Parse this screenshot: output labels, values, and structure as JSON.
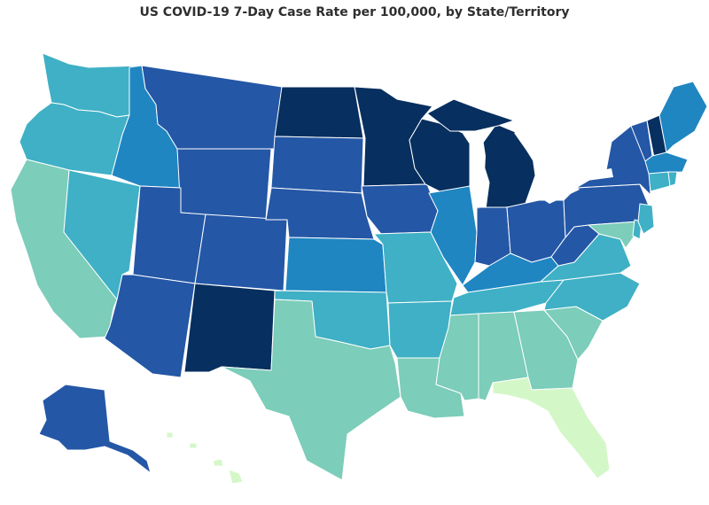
{
  "title": "US COVID-19 7-Day Case Rate per 100,000, by State/Territory",
  "colors": {
    "darkest": "#072f5f",
    "dark": "#2457a6",
    "mid_blue": "#1f86c2",
    "teal": "#3fb0c5",
    "aqua": "#57c0c0",
    "green_teal": "#7ccdb9",
    "light_green": "#d4f7c8"
  },
  "chart_data": {
    "type": "choropleth",
    "title": "US COVID-19 7-Day Case Rate per 100,000, by State/Territory",
    "color_classes": {
      "darkest": [
        "ND",
        "MN",
        "WI",
        "MI",
        "NM",
        "NH"
      ],
      "dark": [
        "MT",
        "WY",
        "SD",
        "NE",
        "UT",
        "CO",
        "AZ",
        "IA",
        "IN",
        "OH",
        "WV",
        "PA",
        "NY",
        "VT",
        "AK"
      ],
      "mid_blue": [
        "ID",
        "KS",
        "KY",
        "ME",
        "IL",
        "MA"
      ],
      "teal": [
        "WA",
        "OR",
        "NV",
        "OK",
        "MO",
        "AR",
        "TN",
        "VA",
        "NC",
        "NJ",
        "CT",
        "RI",
        "DE"
      ],
      "green_teal": [
        "CA",
        "TX",
        "LA",
        "MS",
        "AL",
        "GA",
        "SC",
        "MD"
      ],
      "light_green": [
        "FL",
        "HI"
      ]
    }
  }
}
